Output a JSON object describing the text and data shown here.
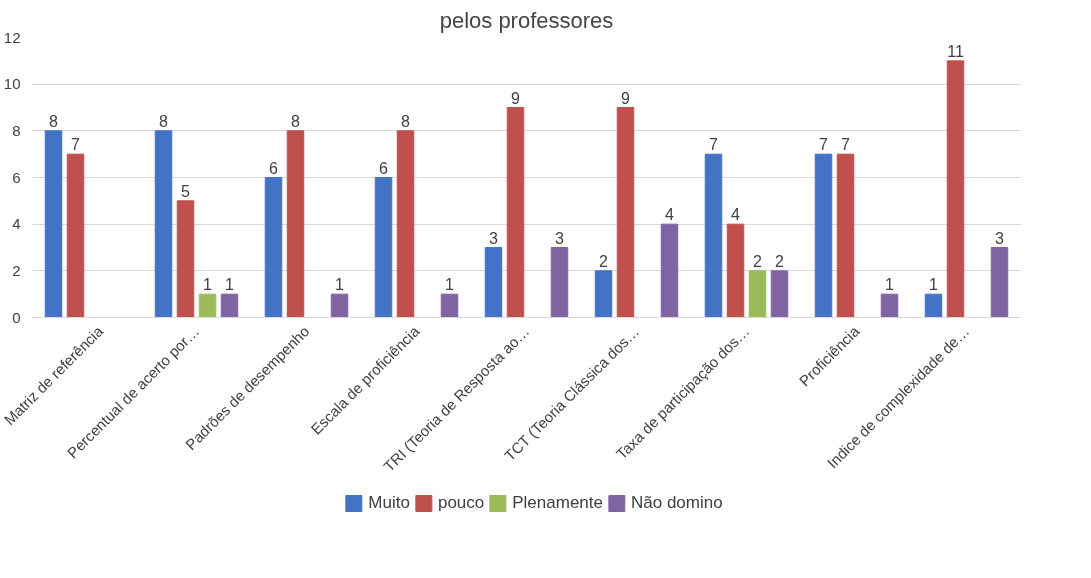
{
  "chart_data": {
    "type": "bar",
    "title": "pelos professores",
    "categories": [
      "Matriz de referência",
      "Percentual de acerto por…",
      "Padrões de desempenho",
      "Escala de proficiência",
      "TRI (Teoria de Resposta ao…",
      "TCT (Teoria Clássica dos…",
      "Taxa de participação dos…",
      "Proficiência",
      "Indice de complexidade de…"
    ],
    "series": [
      {
        "name": "Muito",
        "color": "#4472c4",
        "values": [
          8,
          8,
          6,
          6,
          3,
          2,
          7,
          7,
          1
        ]
      },
      {
        "name": "pouco",
        "color": "#c0504d",
        "values": [
          7,
          5,
          8,
          8,
          9,
          9,
          4,
          7,
          11
        ]
      },
      {
        "name": "Plenamente",
        "color": "#9bbb59",
        "values": [
          null,
          1,
          null,
          null,
          null,
          null,
          2,
          null,
          null
        ]
      },
      {
        "name": "Não domino",
        "color": "#8064a2",
        "values": [
          null,
          1,
          1,
          1,
          3,
          4,
          2,
          1,
          3
        ]
      }
    ],
    "ylim": [
      0,
      12
    ],
    "yticks": [
      0,
      2,
      4,
      6,
      8,
      10,
      12
    ],
    "grid": "y",
    "legend": "bottom",
    "data_labels": true
  }
}
